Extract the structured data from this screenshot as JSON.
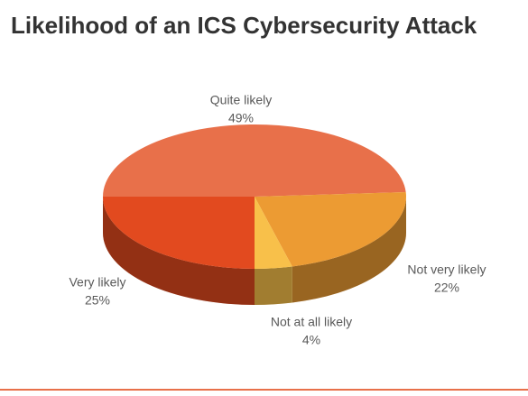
{
  "chart_data": {
    "type": "pie3d",
    "title": "Likelihood of an ICS Cybersecurity Attack",
    "categories": [
      "Quite likely",
      "Not very likely",
      "Not at all likely",
      "Very likely"
    ],
    "values": [
      49,
      22,
      4,
      25
    ],
    "value_labels": [
      "49%",
      "22%",
      "4%",
      "25%"
    ],
    "colors": [
      "#e8704a",
      "#ec9b33",
      "#f8c04a",
      "#e24a1f"
    ]
  }
}
